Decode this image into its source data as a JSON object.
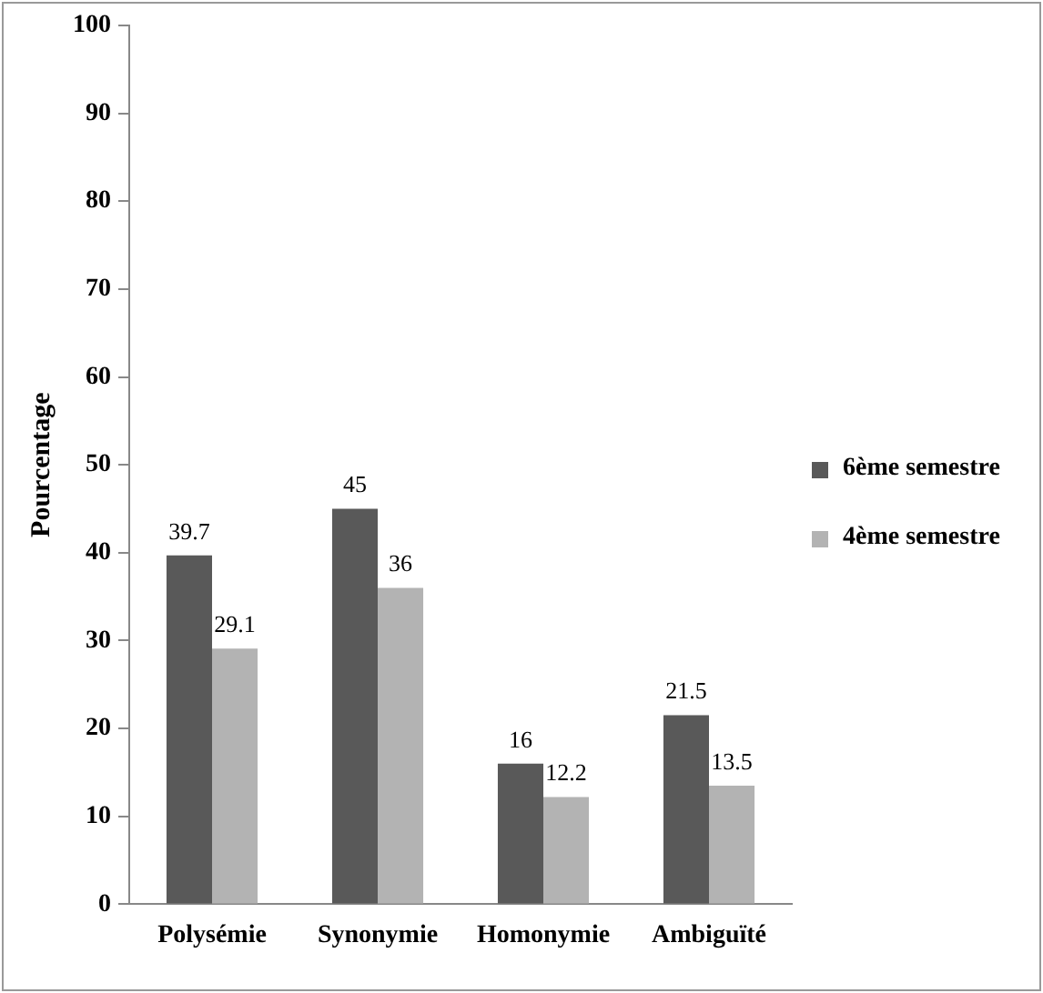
{
  "chart_data": {
    "type": "bar",
    "ylabel": "Pourcentage",
    "categories": [
      "Polysémie",
      "Synonymie",
      "Homonymie",
      "Ambiguïté"
    ],
    "series": [
      {
        "name": "6ème semestre",
        "color": "#595959",
        "values": [
          39.7,
          45,
          16,
          21.5
        ]
      },
      {
        "name": "4ème semestre",
        "color": "#b3b3b3",
        "values": [
          29.1,
          36,
          12.2,
          13.5
        ]
      }
    ],
    "ylim": [
      0,
      100
    ],
    "yticks": [
      0,
      10,
      20,
      30,
      40,
      50,
      60,
      70,
      80,
      90,
      100
    ],
    "data_labels": true,
    "grid": false,
    "legend": "right"
  }
}
